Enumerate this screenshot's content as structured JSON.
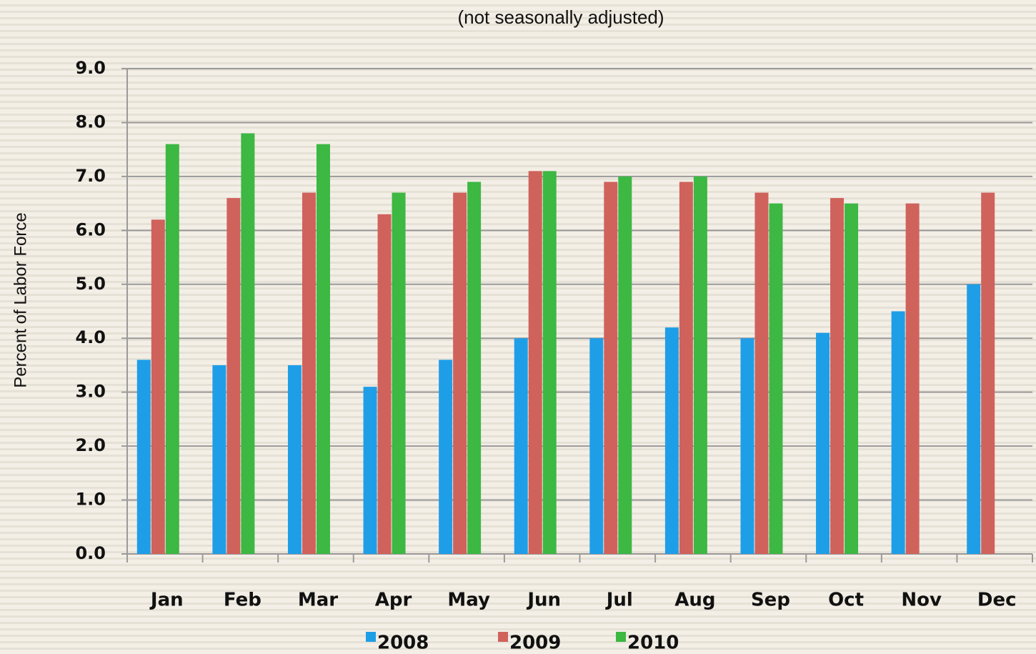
{
  "chart_data": {
    "type": "bar",
    "subtitle": "(not seasonally adjusted)",
    "y_label": "Percent of Labor Force",
    "categories": [
      "Jan",
      "Feb",
      "Mar",
      "Apr",
      "May",
      "Jun",
      "Jul",
      "Aug",
      "Sep",
      "Oct",
      "Nov",
      "Dec"
    ],
    "series": [
      {
        "name": "2008",
        "color": "#1f9ee8",
        "values": [
          3.6,
          3.5,
          3.5,
          3.1,
          3.6,
          4.0,
          4.0,
          4.2,
          4.0,
          4.1,
          4.5,
          5.0
        ]
      },
      {
        "name": "2009",
        "color": "#d0625c",
        "values": [
          6.2,
          6.6,
          6.7,
          6.3,
          6.7,
          7.1,
          6.9,
          6.9,
          6.7,
          6.6,
          6.5,
          6.7
        ]
      },
      {
        "name": "2010",
        "color": "#3cb843",
        "values": [
          7.6,
          7.8,
          7.6,
          6.7,
          6.9,
          7.1,
          7.0,
          7.0,
          6.5,
          6.5,
          null,
          null
        ]
      }
    ],
    "ylim": [
      0,
      9
    ],
    "yticks": [
      {
        "value": 0,
        "label": "0.0"
      },
      {
        "value": 1,
        "label": "1.0"
      },
      {
        "value": 2,
        "label": "2.0"
      },
      {
        "value": 3,
        "label": "3.0"
      },
      {
        "value": 4,
        "label": "4.0"
      },
      {
        "value": 5,
        "label": "5.0"
      },
      {
        "value": 6,
        "label": "6.0"
      },
      {
        "value": 7,
        "label": "7.0"
      },
      {
        "value": 8,
        "label": "8.0"
      },
      {
        "value": 9,
        "label": "9.0"
      }
    ],
    "grid": true,
    "legend": "bottom"
  }
}
